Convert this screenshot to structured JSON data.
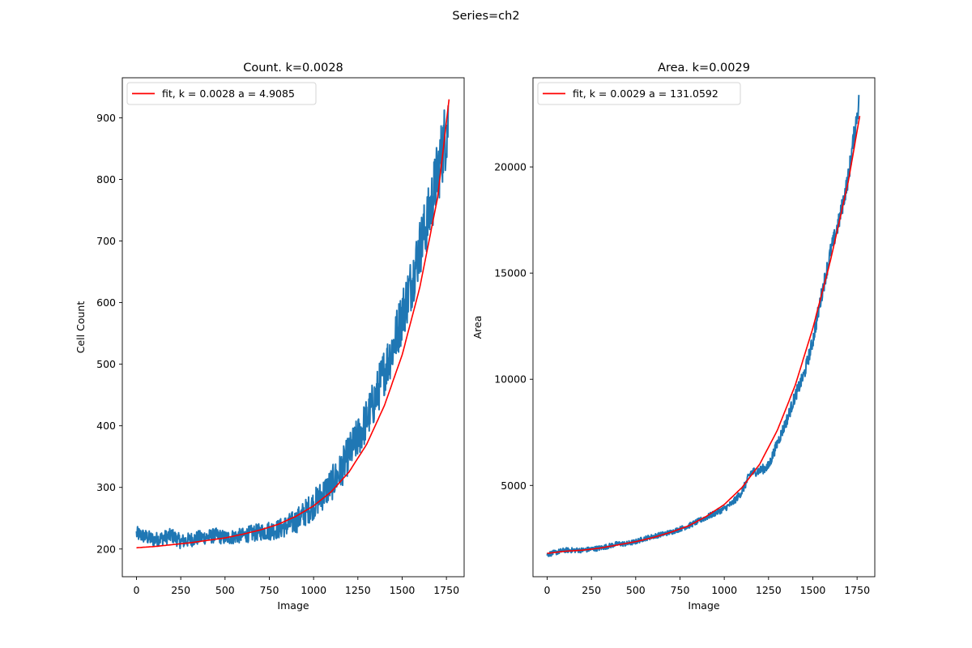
{
  "figure": {
    "suptitle": "Series=ch2"
  },
  "colors": {
    "data": "#1f77b4",
    "fit": "#ff0000",
    "axis": "#000000"
  },
  "chart_data": [
    {
      "type": "line",
      "title": "Count. k=0.0028",
      "xlabel": "Image",
      "ylabel": "Cell Count",
      "xlim": [
        -80,
        1850
      ],
      "ylim": [
        155,
        965
      ],
      "xticks": [
        0,
        250,
        500,
        750,
        1000,
        1250,
        1500,
        1750
      ],
      "yticks": [
        200,
        300,
        400,
        500,
        600,
        700,
        800,
        900
      ],
      "legend": {
        "placement": "top-left",
        "entries": [
          "fit, k = 0.0028 a = 4.9085"
        ]
      },
      "grid": false,
      "series": [
        {
          "role": "data",
          "x": [
            0,
            50,
            100,
            150,
            200,
            250,
            300,
            350,
            400,
            450,
            500,
            550,
            600,
            650,
            700,
            750,
            800,
            850,
            900,
            950,
            1000,
            1050,
            1100,
            1150,
            1200,
            1250,
            1300,
            1350,
            1400,
            1450,
            1500,
            1550,
            1600,
            1650,
            1700,
            1750,
            1760
          ],
          "y": [
            225,
            220,
            215,
            218,
            222,
            212,
            215,
            218,
            220,
            222,
            218,
            220,
            222,
            225,
            228,
            230,
            232,
            238,
            245,
            258,
            272,
            288,
            305,
            325,
            355,
            380,
            410,
            445,
            490,
            530,
            580,
            630,
            690,
            740,
            810,
            880,
            890
          ],
          "noise": [
            12,
            12,
            12,
            12,
            12,
            12,
            12,
            12,
            12,
            12,
            12,
            12,
            12,
            14,
            14,
            16,
            16,
            18,
            20,
            22,
            24,
            26,
            28,
            30,
            32,
            34,
            36,
            38,
            40,
            42,
            44,
            46,
            48,
            50,
            55,
            60,
            60
          ]
        },
        {
          "name": "fit, k = 0.0028 a = 4.9085",
          "role": "fit",
          "x": [
            0,
            100,
            200,
            300,
            400,
            500,
            600,
            700,
            800,
            900,
            1000,
            1100,
            1200,
            1300,
            1400,
            1500,
            1600,
            1700,
            1765
          ],
          "y": [
            202,
            204,
            207,
            210,
            214,
            218,
            224,
            231,
            240,
            253,
            270,
            293,
            325,
            370,
            433,
            515,
            625,
            770,
            930
          ]
        }
      ]
    },
    {
      "type": "line",
      "title": "Area. k=0.0029",
      "xlabel": "Image",
      "ylabel": "Area",
      "xlim": [
        -80,
        1850
      ],
      "ylim": [
        700,
        24200
      ],
      "xticks": [
        0,
        250,
        500,
        750,
        1000,
        1250,
        1500,
        1750
      ],
      "yticks": [
        5000,
        10000,
        15000,
        20000
      ],
      "legend": {
        "placement": "top-left",
        "entries": [
          "fit, k = 0.0029 a = 131.0592"
        ]
      },
      "grid": false,
      "series": [
        {
          "role": "data",
          "x": [
            0,
            50,
            100,
            150,
            200,
            250,
            300,
            350,
            400,
            450,
            500,
            550,
            600,
            650,
            700,
            750,
            800,
            850,
            900,
            950,
            1000,
            1050,
            1100,
            1150,
            1200,
            1250,
            1300,
            1350,
            1400,
            1450,
            1500,
            1550,
            1600,
            1650,
            1700,
            1750,
            1760
          ],
          "y": [
            1750,
            1850,
            1950,
            1950,
            1950,
            2000,
            2050,
            2150,
            2250,
            2250,
            2350,
            2500,
            2600,
            2700,
            2800,
            2950,
            3100,
            3300,
            3500,
            3700,
            3900,
            4200,
            4700,
            5600,
            5700,
            5900,
            7000,
            8000,
            9200,
            10200,
            11800,
            14000,
            16000,
            17500,
            19500,
            22500,
            23000
          ],
          "noise": [
            120,
            120,
            120,
            120,
            120,
            120,
            120,
            120,
            120,
            120,
            120,
            120,
            120,
            120,
            120,
            120,
            130,
            130,
            140,
            140,
            150,
            160,
            180,
            220,
            220,
            240,
            260,
            280,
            300,
            320,
            350,
            380,
            400,
            420,
            450,
            500,
            500
          ]
        },
        {
          "name": "fit, k = 0.0029 a = 131.0592",
          "role": "fit",
          "x": [
            0,
            100,
            200,
            300,
            400,
            500,
            600,
            700,
            800,
            900,
            1000,
            1100,
            1200,
            1300,
            1400,
            1500,
            1600,
            1700,
            1765
          ],
          "y": [
            1800,
            1900,
            1950,
            2050,
            2200,
            2350,
            2550,
            2800,
            3100,
            3550,
            4100,
            4900,
            6000,
            7600,
            9700,
            12400,
            15600,
            19300,
            22400
          ]
        }
      ]
    }
  ]
}
